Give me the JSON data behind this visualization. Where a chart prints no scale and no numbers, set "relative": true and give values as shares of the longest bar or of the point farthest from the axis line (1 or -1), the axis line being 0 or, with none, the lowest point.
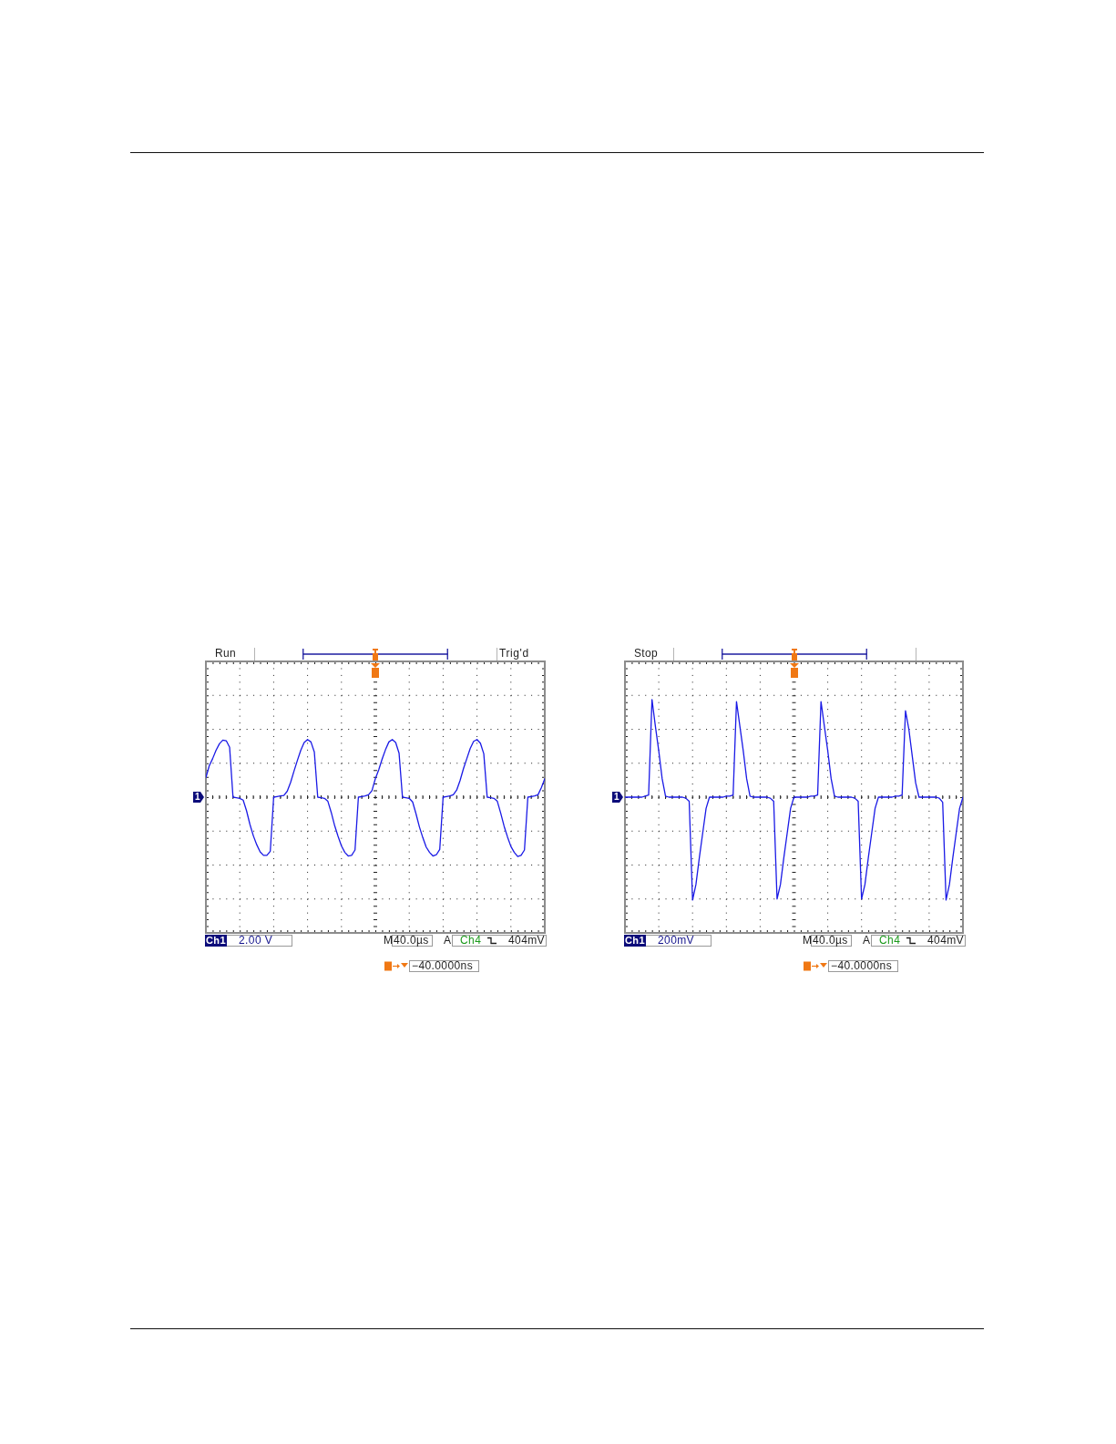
{
  "chart_data": [
    {
      "type": "line",
      "relative": true,
      "grid": true,
      "categories": [
        null,
        null,
        null,
        null,
        null,
        null,
        null,
        null,
        null,
        null,
        null,
        null,
        null,
        null,
        null,
        null,
        null,
        null,
        null,
        null,
        null,
        null,
        null,
        null,
        null,
        null,
        null,
        null,
        null,
        null,
        null,
        null,
        null,
        null,
        null,
        null,
        null,
        null,
        null,
        null,
        null,
        null,
        null,
        null,
        null,
        null,
        null,
        null,
        null,
        null,
        null,
        null,
        null,
        null,
        null,
        null,
        null,
        null,
        null,
        null,
        null,
        null,
        null,
        null,
        null,
        null,
        null,
        null,
        null,
        null,
        null,
        null,
        null,
        null,
        null,
        null,
        null,
        null,
        null,
        null,
        null,
        null,
        null,
        null,
        null,
        null,
        null,
        null,
        null,
        null,
        null,
        null,
        null,
        null,
        null,
        null,
        null,
        null,
        null,
        null,
        null
      ],
      "series": [
        {
          "color": "#1a1ae6",
          "values": [
            0.33,
            0.53,
            0.65,
            0.79,
            0.9,
            0.96,
            0.95,
            0.84,
            0.0,
            -0.01,
            -0.02,
            -0.05,
            -0.23,
            -0.46,
            -0.65,
            -0.8,
            -0.92,
            -0.98,
            -0.98,
            -0.91,
            0.0,
            0.01,
            0.02,
            0.03,
            0.1,
            0.25,
            0.44,
            0.62,
            0.79,
            0.92,
            0.97,
            0.93,
            0.76,
            0.0,
            -0.01,
            -0.02,
            -0.07,
            -0.26,
            -0.48,
            -0.66,
            -0.82,
            -0.93,
            -0.99,
            -0.98,
            -0.89,
            0.0,
            0.01,
            0.02,
            0.04,
            0.11,
            0.31,
            0.46,
            0.64,
            0.8,
            0.93,
            0.97,
            0.92,
            0.74,
            0.0,
            -0.01,
            -0.02,
            -0.08,
            -0.28,
            -0.5,
            -0.68,
            -0.84,
            -0.93,
            -0.99,
            -0.97,
            -0.88,
            0.0,
            0.01,
            0.02,
            0.04,
            0.12,
            0.28,
            0.48,
            0.65,
            0.82,
            0.94,
            0.97,
            0.91,
            0.73,
            0.0,
            -0.01,
            -0.02,
            -0.07,
            -0.27,
            -0.49,
            -0.67,
            -0.83,
            -0.93,
            -1.0,
            -0.98,
            -0.89,
            0.0,
            0.01,
            0.02,
            0.04,
            0.16,
            0.31
          ]
        }
      ],
      "annotations": [
        "Run",
        "Ch1",
        "2.00 V",
        "M",
        "40.0µs",
        "A",
        "Ch4",
        "404mV",
        "−40.0000ns",
        "1",
        "Trig'd"
      ]
    },
    {
      "type": "line",
      "relative": true,
      "grid": true,
      "categories": [
        null,
        null,
        null,
        null,
        null,
        null,
        null,
        null,
        null,
        null,
        null,
        null,
        null,
        null,
        null,
        null,
        null,
        null,
        null,
        null,
        null,
        null,
        null,
        null,
        null,
        null,
        null,
        null,
        null,
        null,
        null,
        null,
        null,
        null,
        null,
        null,
        null,
        null,
        null,
        null,
        null,
        null,
        null,
        null,
        null,
        null,
        null,
        null,
        null,
        null,
        null,
        null,
        null,
        null,
        null,
        null,
        null,
        null,
        null,
        null,
        null,
        null,
        null,
        null,
        null,
        null,
        null,
        null,
        null,
        null,
        null,
        null,
        null,
        null,
        null,
        null,
        null,
        null,
        null,
        null,
        null,
        null,
        null,
        null,
        null,
        null,
        null,
        null,
        null,
        null,
        null,
        null,
        null,
        null,
        null,
        null,
        null,
        null,
        null,
        null,
        null
      ],
      "series": [
        {
          "color": "#1a1ae6",
          "values": [
            0,
            0,
            0,
            0,
            0,
            0,
            0.01,
            0.02,
            0.95,
            0.69,
            0.45,
            0.18,
            0.01,
            0,
            0,
            0,
            0,
            0,
            -0.01,
            -0.04,
            -1.0,
            -0.85,
            -0.59,
            -0.35,
            -0.11,
            0,
            0,
            0,
            0,
            0,
            0.01,
            0.01,
            0.02,
            0.93,
            0.69,
            0.45,
            0.18,
            0.01,
            0,
            0,
            0,
            0,
            0,
            -0.01,
            -0.04,
            -0.99,
            -0.85,
            -0.59,
            -0.35,
            -0.11,
            0,
            0,
            0,
            0,
            0,
            0.01,
            0.01,
            0.02,
            0.93,
            0.69,
            0.45,
            0.18,
            0.01,
            0,
            0,
            0,
            0,
            0,
            -0.01,
            -0.04,
            -0.99,
            -0.85,
            -0.59,
            -0.35,
            -0.11,
            0,
            0,
            0,
            0,
            0,
            0.01,
            0.01,
            0.02,
            0.84,
            0.66,
            0.4,
            0.14,
            0,
            0,
            0,
            0,
            0,
            0,
            -0.01,
            -0.05,
            -1.0,
            -0.85,
            -0.59,
            -0.35,
            -0.11,
            0
          ]
        }
      ],
      "annotations": [
        "Stop",
        "Ch1",
        "200mV",
        "M",
        "40.0µs",
        "A",
        "Ch4",
        "404mV",
        "−40.0000ns",
        "1"
      ]
    }
  ]
}
